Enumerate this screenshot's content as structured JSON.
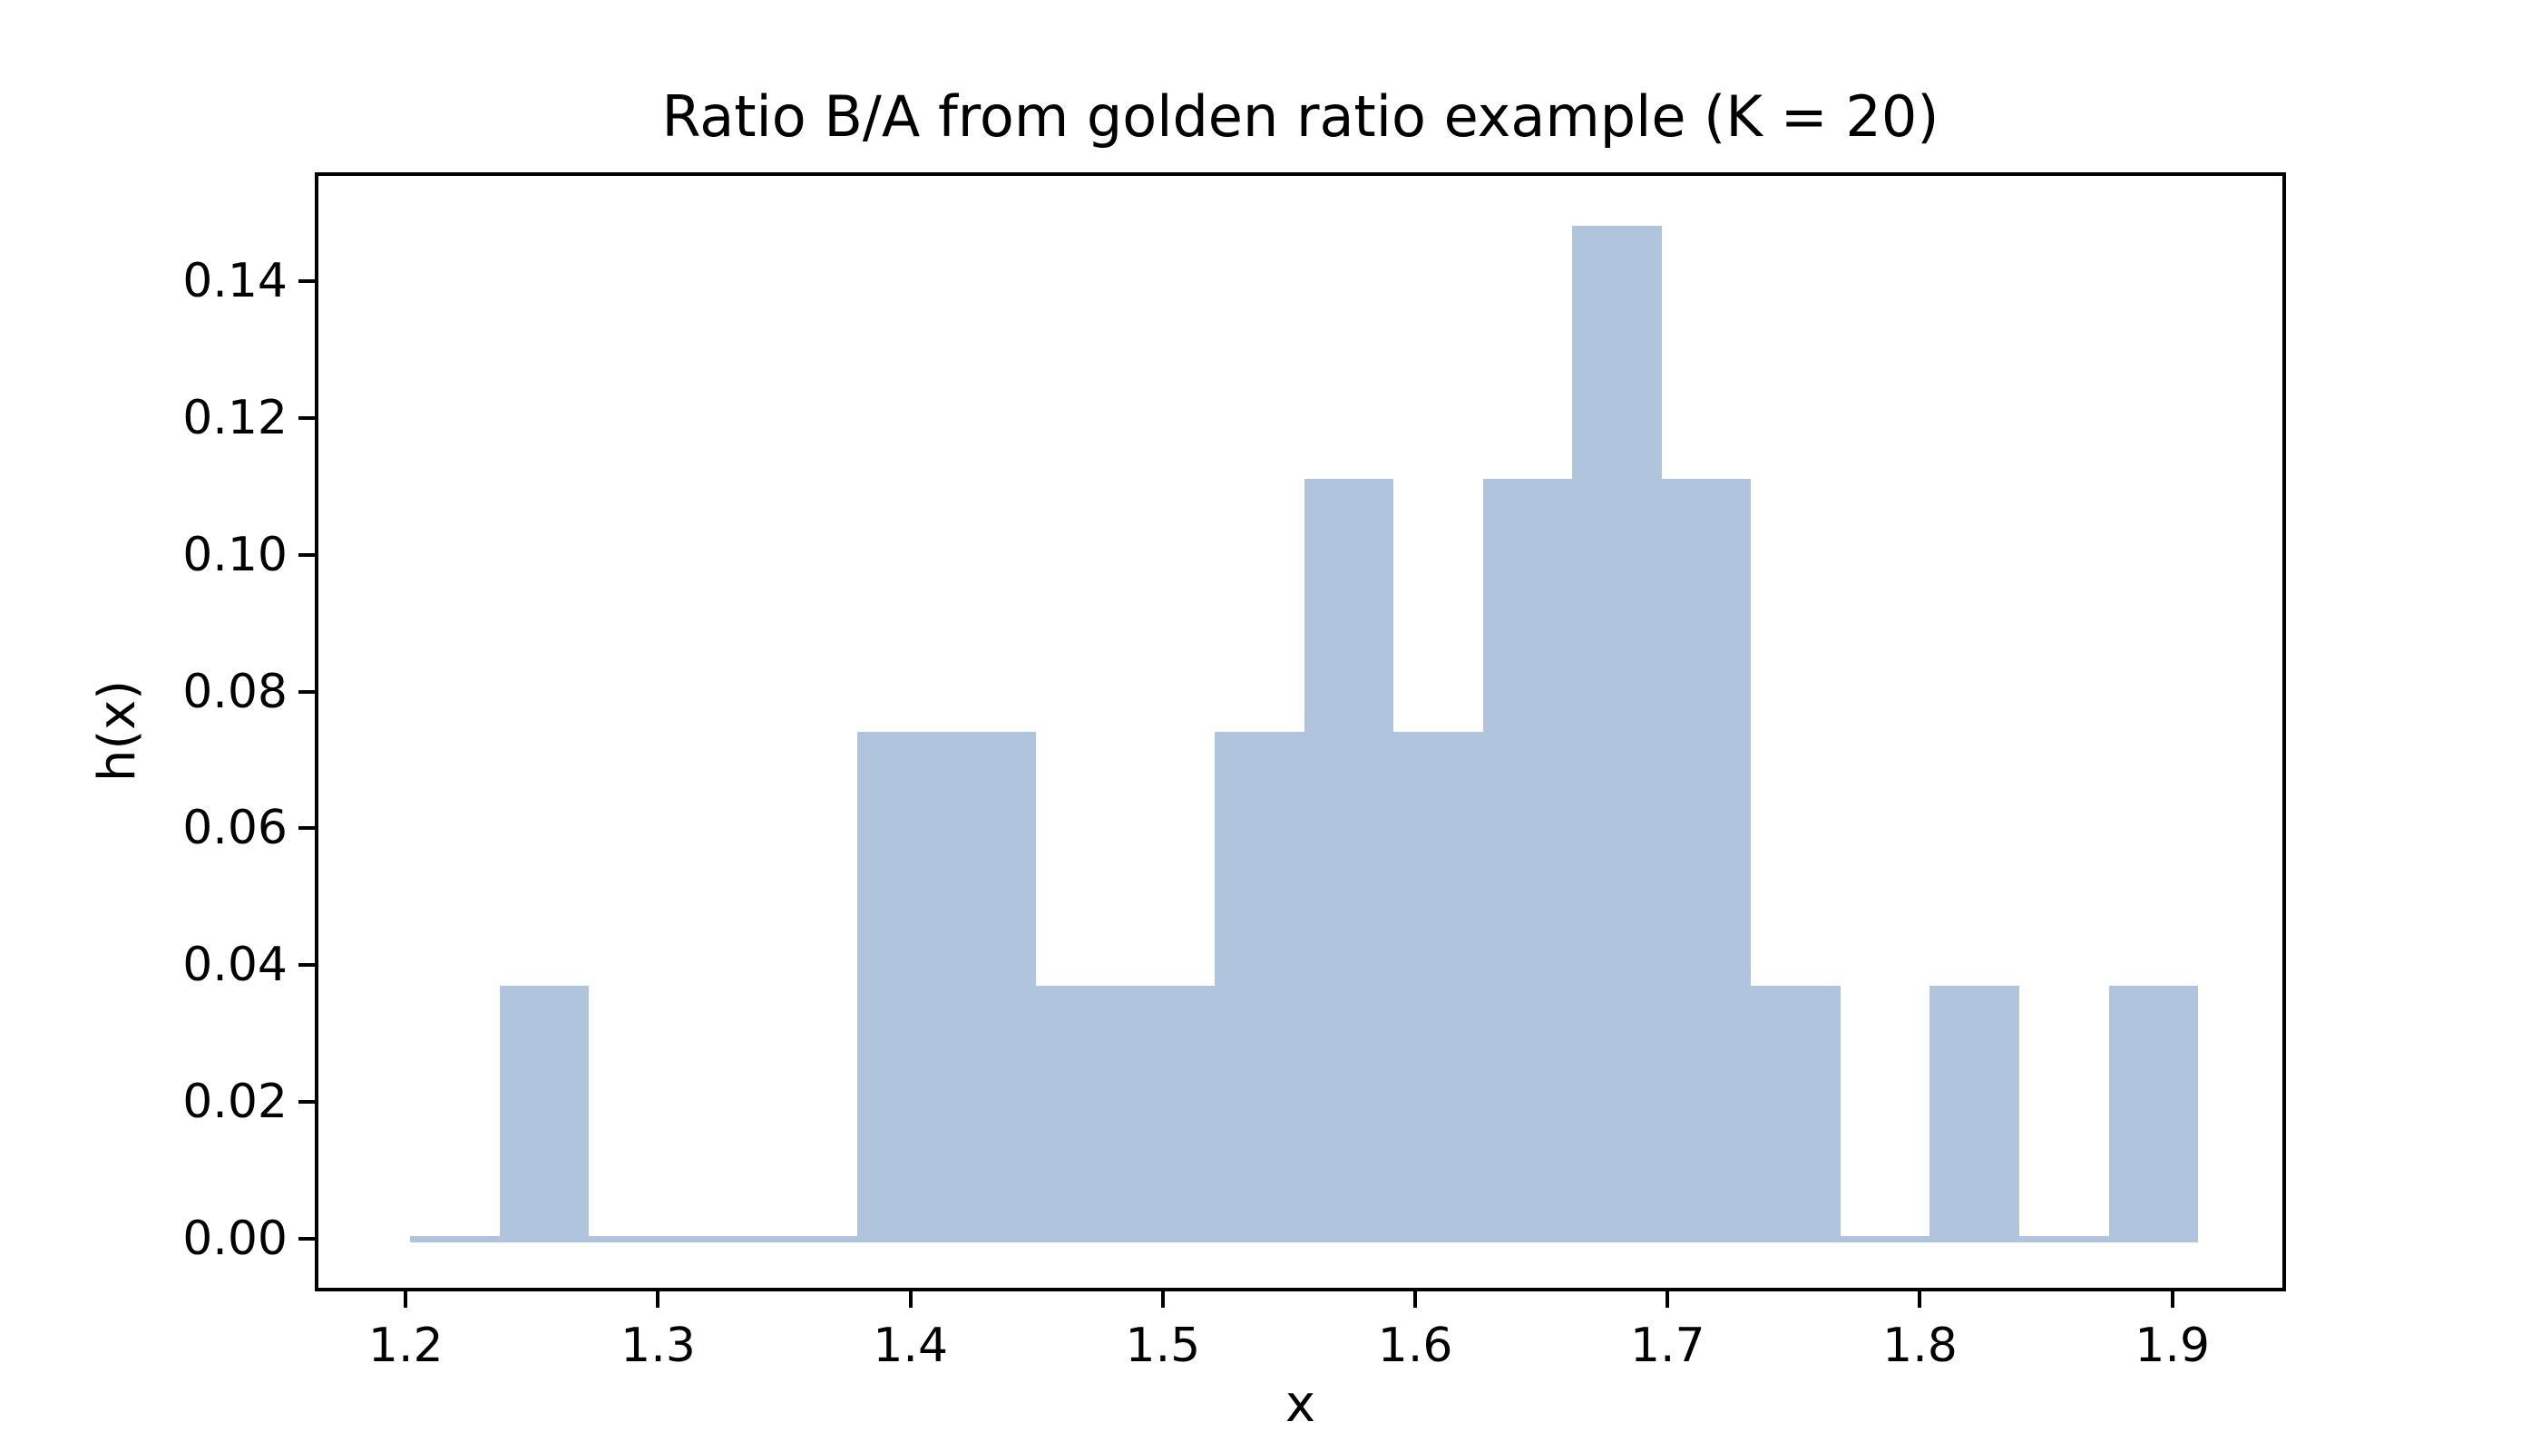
{
  "title": "Ratio B/A from golden ratio example (K = 20)",
  "chart_data": {
    "type": "bar",
    "subtype": "histogram",
    "title": "Ratio B/A from golden ratio example (K = 20)",
    "xlabel": "x",
    "ylabel": "h(x)",
    "bar_color": "#b0c4de",
    "background_color": "#ffffff",
    "spine_color": "#000000",
    "grid": false,
    "legend": false,
    "bin_edges": [
      1.2017,
      1.2371,
      1.2725,
      1.308,
      1.3434,
      1.3788,
      1.4143,
      1.4497,
      1.4851,
      1.5205,
      1.556,
      1.5914,
      1.6268,
      1.6622,
      1.6977,
      1.7331,
      1.7685,
      1.8039,
      1.8394,
      1.8748,
      1.9102
    ],
    "bin_heights": [
      0,
      0.037,
      0,
      0,
      0,
      0.0741,
      0.0741,
      0.037,
      0.037,
      0.0741,
      0.1111,
      0.0741,
      0.1111,
      0.1481,
      0.1111,
      0.037,
      0,
      0.037,
      0,
      0.037
    ],
    "x_ticks": [
      1.2,
      1.3,
      1.4,
      1.5,
      1.6,
      1.7,
      1.8,
      1.9
    ],
    "x_tick_labels": [
      "1.2",
      "1.3",
      "1.4",
      "1.5",
      "1.6",
      "1.7",
      "1.8",
      "1.9"
    ],
    "y_ticks": [
      0.0,
      0.02,
      0.04,
      0.06,
      0.08,
      0.1,
      0.12,
      0.14
    ],
    "y_tick_labels": [
      "0.00",
      "0.02",
      "0.04",
      "0.06",
      "0.08",
      "0.10",
      "0.12",
      "0.14"
    ],
    "xlim": [
      1.16467,
      1.94432
    ],
    "ylim": [
      -0.00742,
      0.15563
    ]
  }
}
